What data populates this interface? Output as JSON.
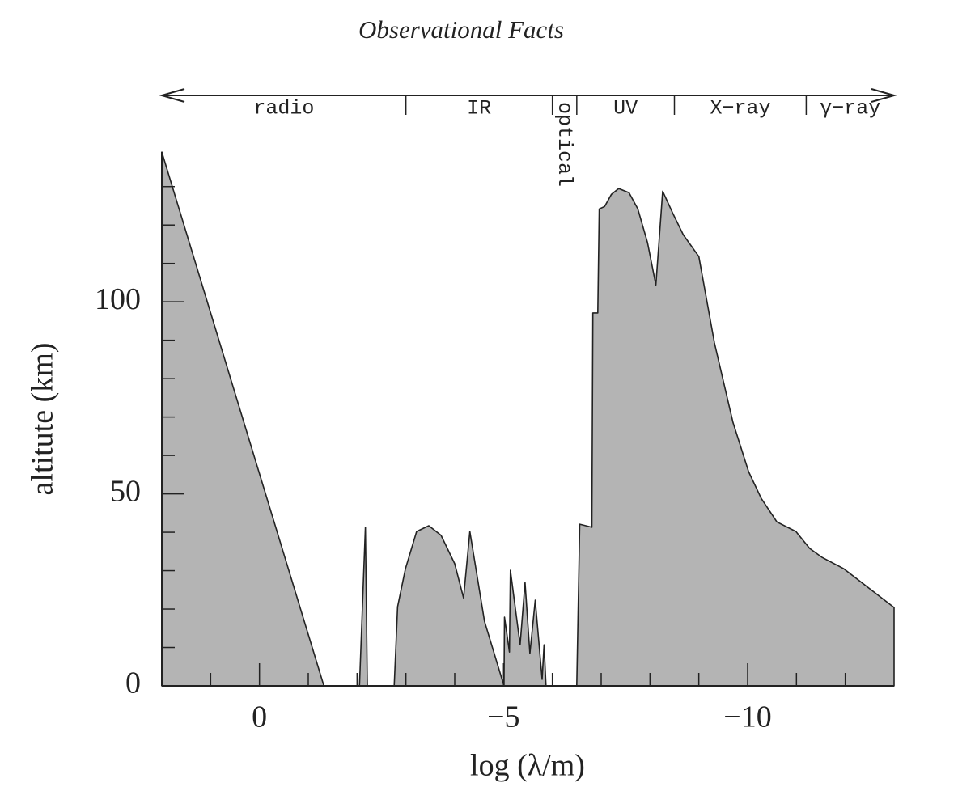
{
  "chart_data": {
    "type": "area",
    "title": "Observational Facts",
    "xlabel": "log (λ/m)",
    "ylabel": "altitute (km)",
    "color": "#b4b4b4",
    "x": [
      2,
      -1.32,
      -2.05,
      -2.17,
      -2.21,
      -2.76,
      -2.83,
      -2.99,
      -3.22,
      -3.47,
      -3.72,
      -4.0,
      -4.18,
      -4.31,
      -4.61,
      -5.01,
      -5.02,
      -5.12,
      -5.14,
      -5.34,
      -5.44,
      -5.54,
      -5.65,
      -5.79,
      -5.83,
      -5.87,
      -6.5,
      -6.56,
      -6.81,
      -6.83,
      -6.93,
      -6.96,
      -7.07,
      -7.21,
      -7.36,
      -7.57,
      -7.75,
      -7.95,
      -8.12,
      -8.26,
      -8.48,
      -8.68,
      -9.0,
      -9.32,
      -9.7,
      -10.02,
      -10.28,
      -10.6,
      -10.99,
      -11.27,
      -11.52,
      -11.97,
      -13
    ],
    "values": [
      139,
      0,
      0,
      41.3,
      0,
      0,
      20.6,
      30.5,
      40.2,
      41.7,
      39.2,
      31.8,
      22.9,
      40.2,
      16.8,
      0,
      17.9,
      8.8,
      30.1,
      10.7,
      26.9,
      8.4,
      22.3,
      1.7,
      10.7,
      0,
      0,
      42.1,
      41.3,
      97.1,
      97.1,
      124.2,
      124.8,
      128,
      129.5,
      128.4,
      124.2,
      115.4,
      104.4,
      128.8,
      122.7,
      117.5,
      111.8,
      89.3,
      68.6,
      55.8,
      48.8,
      42.7,
      40.2,
      35.8,
      33.5,
      30.5,
      20.4
    ],
    "xlim": [
      2,
      -13
    ],
    "xticks": [
      0,
      {
        "value": -5,
        "label": "−5"
      },
      {
        "value": -10,
        "label": "−10"
      }
    ],
    "xminor_ticks": [
      1,
      -1,
      -2,
      -3,
      -4,
      -6,
      -7,
      -8,
      -9,
      -11,
      -12
    ],
    "ylim": [
      0,
      139
    ],
    "yticks": [
      0,
      50,
      100
    ],
    "yminor_ticks": [
      10,
      20,
      30,
      40,
      60,
      70,
      80,
      90,
      110,
      120,
      130
    ],
    "bands": [
      {
        "label": "radio",
        "from": 2,
        "to": -3
      },
      {
        "label": "IR",
        "from": -3,
        "to": -6
      },
      {
        "label": "optical",
        "from": -6,
        "to": -6.5
      },
      {
        "label": "UV",
        "from": -6.5,
        "to": -8.5
      },
      {
        "label": "X−ray",
        "from": -8.5,
        "to": -11.2
      },
      {
        "label": "γ−ray",
        "from": -11.2,
        "to": -13
      }
    ]
  }
}
